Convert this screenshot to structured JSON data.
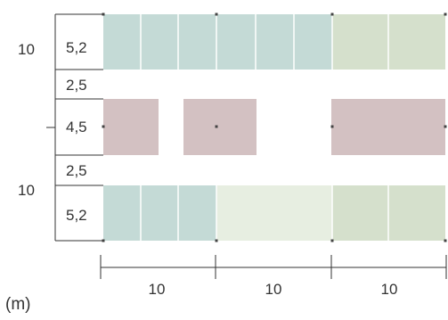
{
  "outer_dims": {
    "top": "10",
    "bottom": "10"
  },
  "row_dims": {
    "top_band": "5,2",
    "upper_aisle": "2,5",
    "middle_band": "4,5",
    "lower_aisle": "2,5",
    "bottom_band": "5,2"
  },
  "col_dims": {
    "left": "10",
    "middle": "10",
    "right": "10"
  },
  "unit_label": "(m)",
  "colors": {
    "teal": "#c4dad6",
    "sage": "#d5e0cc",
    "pale_green": "#e7eee1",
    "mauve": "#d3c1c2",
    "divider": "#ffffff",
    "line": "#333333"
  }
}
